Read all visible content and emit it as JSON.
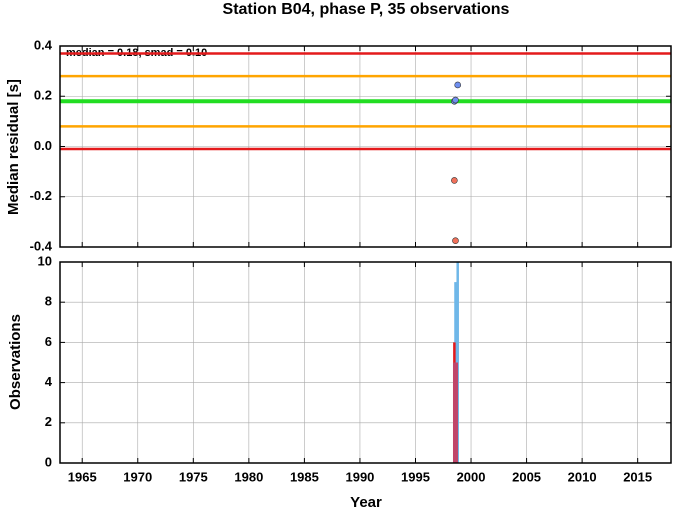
{
  "chart_data": [
    {
      "type": "scatter",
      "title": "Station B04, phase P, 35 observations",
      "ylabel": "Median residual [s]",
      "annotation": "median = 0.18, smad = 0.10",
      "xlim": [
        1963,
        2018
      ],
      "ylim": [
        -0.4,
        0.4
      ],
      "yticks": [
        -0.4,
        -0.2,
        {
          "value": 0,
          "label": "0.0"
        },
        0.2,
        0.4
      ],
      "grid": true,
      "hlines": [
        {
          "value": 0.37,
          "color": "#e41a1c"
        },
        {
          "value": 0.28,
          "color": "#ffa500"
        },
        {
          "value": 0.18,
          "color": "#22dd22"
        },
        {
          "value": 0.08,
          "color": "#ffa500"
        },
        {
          "value": -0.01,
          "color": "#e41a1c"
        }
      ],
      "series": [
        {
          "color": "#6f8ff0",
          "x": [
            1998.8,
            1998.5,
            1998.6
          ],
          "values": [
            0.245,
            0.18,
            0.185
          ]
        },
        {
          "color": "#f0705a",
          "x": [
            1998.5,
            1998.6
          ],
          "values": [
            -0.135,
            -0.375
          ]
        }
      ]
    },
    {
      "type": "bar",
      "xlabel": "Year",
      "ylabel": "Observations",
      "xlim": [
        1963,
        2018
      ],
      "ylim": [
        0,
        10
      ],
      "xticks": [
        1965,
        1970,
        1975,
        1980,
        1985,
        1990,
        1995,
        2000,
        2005,
        2010,
        2015
      ],
      "yticks": [
        0,
        2,
        4,
        6,
        8,
        10
      ],
      "grid": true,
      "series": [
        {
          "color": "#6fb7e8",
          "x": [
            1998.6,
            1998.8
          ],
          "values": [
            9,
            10
          ]
        },
        {
          "color": "#e41a1c",
          "x": [
            1998.5
          ],
          "values": [
            6
          ]
        },
        {
          "color": "#c0466a",
          "x": [
            1998.6
          ],
          "values": [
            5
          ]
        }
      ]
    }
  ]
}
